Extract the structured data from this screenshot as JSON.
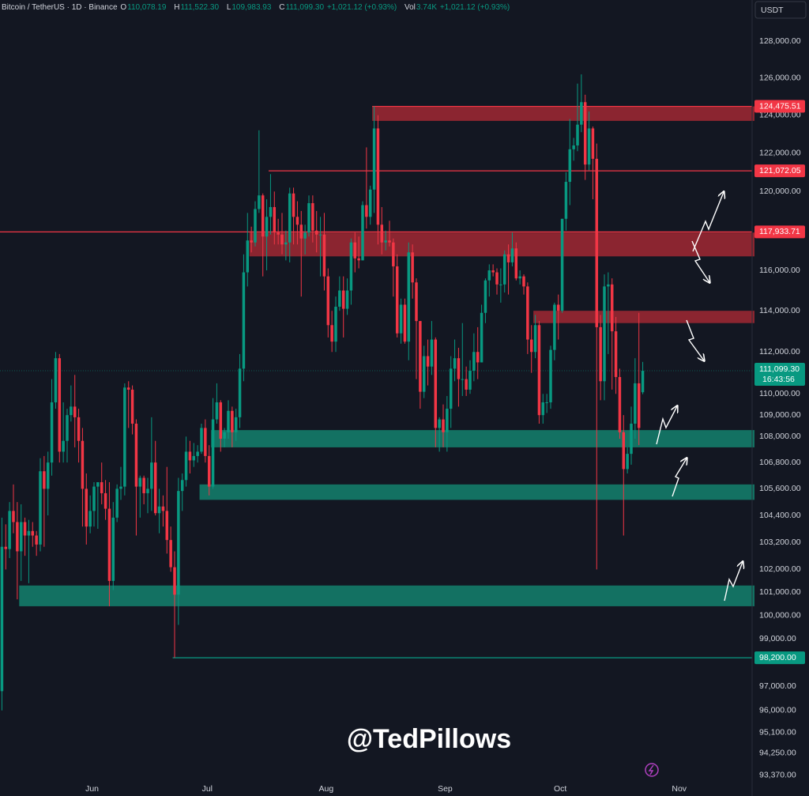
{
  "header": {
    "symbol": "Bitcoin / TetherUS · 1D · Binance",
    "o_label": "O",
    "o": "110,078.19",
    "h_label": "H",
    "h": "111,522.30",
    "l_label": "L",
    "l": "109,983.93",
    "c_label": "C",
    "c": "111,099.30",
    "change": "+1,021.12 (+0.93%)",
    "vol_label": "Vol",
    "vol": "3.74K",
    "vol_change": "+1,021.12 (+0.93%)"
  },
  "currency_button": "USDT",
  "watermark": "@TedPillows",
  "chart_data": {
    "type": "candlestick",
    "log_scale": true,
    "grid": false,
    "up_color": "#089981",
    "down_color": "#f23645",
    "ylim": [
      93070,
      130300
    ],
    "yticks": [
      {
        "value": 128000,
        "label": "128,000.00"
      },
      {
        "value": 126000,
        "label": "126,000.00"
      },
      {
        "value": 124000,
        "label": "124,000.00"
      },
      {
        "value": 122000,
        "label": "122,000.00"
      },
      {
        "value": 120000,
        "label": "120,000.00"
      },
      {
        "value": 116000,
        "label": "116,000.00"
      },
      {
        "value": 114000,
        "label": "114,000.00"
      },
      {
        "value": 112000,
        "label": "112,000.00"
      },
      {
        "value": 110000,
        "label": "110,000.00"
      },
      {
        "value": 109000,
        "label": "109,000.00"
      },
      {
        "value": 108000,
        "label": "108,000.00"
      },
      {
        "value": 106800,
        "label": "106,800.00"
      },
      {
        "value": 105600,
        "label": "105,600.00"
      },
      {
        "value": 104400,
        "label": "104,400.00"
      },
      {
        "value": 103200,
        "label": "103,200.00"
      },
      {
        "value": 102000,
        "label": "102,000.00"
      },
      {
        "value": 101000,
        "label": "101,000.00"
      },
      {
        "value": 100000,
        "label": "100,000.00"
      },
      {
        "value": 99000,
        "label": "99,000.00"
      },
      {
        "value": 97000,
        "label": "97,000.00"
      },
      {
        "value": 96000,
        "label": "96,000.00"
      },
      {
        "value": 95100,
        "label": "95,100.00"
      },
      {
        "value": 94250,
        "label": "94,250.00"
      },
      {
        "value": 93370,
        "label": "93,370.00"
      }
    ],
    "xlim": [
      0,
      196
    ],
    "xticks": [
      {
        "value": 24,
        "label": "Jun"
      },
      {
        "value": 54,
        "label": "Jul"
      },
      {
        "value": 85,
        "label": "Aug"
      },
      {
        "value": 116,
        "label": "Sep"
      },
      {
        "value": 146,
        "label": "Oct"
      },
      {
        "value": 177,
        "label": "Nov"
      }
    ],
    "open": [
      96800,
      103000,
      102900,
      104600,
      104100,
      102800,
      104100,
      103500,
      103700,
      103500,
      103100,
      106400,
      105600,
      106800,
      109600,
      111700,
      107300,
      107800,
      109000,
      109400,
      108900,
      107800,
      105600,
      103900,
      104600,
      105700,
      105900,
      105400,
      104700,
      101500,
      104300,
      105600,
      105700,
      110300,
      110200,
      108600,
      105700,
      106100,
      105400,
      105600,
      106800,
      104500,
      104800,
      104600,
      103300,
      102100,
      100900,
      105500,
      106000,
      107300,
      106900,
      107100,
      107300,
      108400,
      107100,
      105700,
      108800,
      109600,
      107900,
      108200,
      109200,
      108200,
      108900,
      111200,
      115900,
      117500,
      117400,
      119100,
      119800,
      117700,
      118700,
      119200,
      117900,
      117800,
      117300,
      117400,
      119900,
      118700,
      118300,
      117600,
      117900,
      119400,
      118000,
      117800,
      117800,
      115700,
      113300,
      112500,
      114200,
      115000,
      114100,
      115000,
      117400,
      116600,
      116500,
      119300,
      118700,
      120100,
      123300,
      118300,
      117400,
      117500,
      117400,
      116200,
      112900,
      114300,
      112500,
      116900,
      115400,
      113500,
      110100,
      111800,
      111300,
      112600,
      108400,
      108800,
      108200,
      109300,
      111200,
      111700,
      110700,
      110700,
      110200,
      111100,
      112000,
      111500,
      113900,
      115500,
      116000,
      115900,
      115300,
      115300,
      116800,
      116400,
      117100,
      115600,
      115700,
      115200,
      112600,
      112000,
      113300,
      109000,
      109600,
      109600,
      112100,
      114300,
      114000,
      118600,
      120500,
      122200,
      122400,
      123500,
      124700,
      121400,
      123300,
      121700,
      113200,
      110600,
      115200,
      115300,
      113000,
      110800,
      108200,
      106500,
      107200,
      108600,
      110500,
      110078.19
    ],
    "high": [
      104300,
      104000,
      105000,
      105800,
      105000,
      104900,
      104300,
      104200,
      104100,
      103700,
      107000,
      107100,
      107300,
      110700,
      112000,
      111900,
      109600,
      109300,
      110400,
      110900,
      109300,
      108400,
      106300,
      105300,
      105900,
      105900,
      106800,
      106000,
      105900,
      105000,
      105800,
      106600,
      110500,
      110600,
      110400,
      108800,
      106200,
      106200,
      106100,
      108900,
      107800,
      105600,
      105300,
      106600,
      103900,
      102800,
      106100,
      106300,
      108000,
      107800,
      107700,
      107600,
      108600,
      108800,
      107600,
      109800,
      110500,
      109700,
      108400,
      109700,
      109400,
      109300,
      111900,
      116800,
      118900,
      118200,
      119500,
      123200,
      119900,
      119600,
      120900,
      120000,
      118600,
      118900,
      118000,
      120200,
      120200,
      119500,
      119000,
      118300,
      119800,
      119800,
      119000,
      118700,
      118900,
      116100,
      114000,
      114700,
      115700,
      115700,
      115600,
      117600,
      117900,
      117700,
      119500,
      122300,
      120300,
      124475.51,
      124000,
      119200,
      118000,
      118500,
      117600,
      116800,
      114600,
      114600,
      117400,
      117300,
      115600,
      113500,
      112300,
      112600,
      113500,
      112700,
      108900,
      109500,
      109900,
      111800,
      112600,
      112200,
      113400,
      111300,
      111600,
      112900,
      113200,
      114300,
      115600,
      116300,
      116300,
      116100,
      116100,
      117000,
      117300,
      117900,
      117400,
      116000,
      115800,
      115400,
      113300,
      113800,
      113500,
      110000,
      110000,
      112300,
      114400,
      114800,
      118600,
      121000,
      123800,
      122800,
      125700,
      126200,
      125100,
      124200,
      123400,
      122500,
      113800,
      115800,
      115900,
      115600,
      113700,
      111200,
      109000,
      107500,
      109400,
      111700,
      113900,
      111522.3
    ],
    "low": [
      96000,
      102000,
      102500,
      103600,
      100700,
      101500,
      102600,
      101400,
      103000,
      102600,
      102800,
      103000,
      104400,
      106200,
      109300,
      106800,
      106800,
      106800,
      108700,
      107500,
      106800,
      103900,
      103100,
      103600,
      103900,
      103800,
      104900,
      104200,
      100400,
      101100,
      104100,
      105100,
      105300,
      108400,
      108100,
      103500,
      104300,
      104900,
      104500,
      104600,
      104400,
      103600,
      103900,
      102700,
      101900,
      98200,
      99600,
      104600,
      105700,
      106300,
      106600,
      106800,
      107200,
      106800,
      105300,
      105600,
      108600,
      107300,
      107500,
      107900,
      107500,
      107800,
      108400,
      110600,
      115200,
      116900,
      117200,
      118900,
      115700,
      116000,
      117800,
      117300,
      117300,
      116800,
      116500,
      116400,
      117300,
      117300,
      114700,
      116800,
      117700,
      117400,
      116900,
      115700,
      115000,
      112700,
      112000,
      112000,
      114000,
      112700,
      113800,
      114300,
      115900,
      116100,
      116500,
      118100,
      118300,
      118900,
      117300,
      116800,
      117000,
      117200,
      114700,
      112700,
      112400,
      112400,
      111600,
      114600,
      110700,
      109300,
      109800,
      110400,
      110900,
      107500,
      107300,
      107500,
      107300,
      108400,
      110600,
      109400,
      109900,
      109900,
      110000,
      110600,
      110700,
      111500,
      113400,
      114700,
      115700,
      114800,
      114400,
      114900,
      114800,
      116200,
      115500,
      115300,
      114800,
      111900,
      111000,
      111700,
      108600,
      108600,
      109100,
      109300,
      111600,
      112600,
      113900,
      118000,
      119300,
      121600,
      122100,
      123100,
      120600,
      121100,
      119600,
      102000,
      109700,
      109700,
      111900,
      110200,
      110000,
      107900,
      103500,
      106300,
      106700,
      107900,
      107600,
      109983.93
    ],
    "close": [
      103000,
      102900,
      104600,
      104100,
      102800,
      104100,
      103500,
      103700,
      103500,
      103100,
      106400,
      105600,
      106800,
      109600,
      111700,
      107300,
      107800,
      109000,
      109400,
      108900,
      107800,
      105600,
      103900,
      104600,
      105700,
      105900,
      105400,
      104700,
      101500,
      104300,
      105600,
      105700,
      110300,
      110200,
      108600,
      105700,
      106100,
      105400,
      105600,
      106800,
      104500,
      104800,
      104600,
      103300,
      102100,
      100900,
      105500,
      106000,
      107300,
      106900,
      107100,
      107300,
      108400,
      107100,
      105700,
      108800,
      109600,
      107900,
      108200,
      109200,
      108200,
      108900,
      111200,
      115900,
      117500,
      117400,
      119100,
      119800,
      117700,
      118700,
      119200,
      117900,
      117800,
      117300,
      117400,
      119900,
      118700,
      118300,
      117600,
      117900,
      119400,
      118000,
      117800,
      117800,
      115700,
      113300,
      112500,
      114200,
      115000,
      114100,
      115000,
      117400,
      116600,
      116500,
      119300,
      118700,
      120100,
      123300,
      118300,
      117400,
      117500,
      117400,
      116200,
      112900,
      114300,
      112500,
      116900,
      115400,
      113500,
      110100,
      111800,
      111300,
      112600,
      108400,
      108800,
      108200,
      109300,
      111200,
      111700,
      110700,
      110700,
      110200,
      111100,
      112000,
      111500,
      113900,
      115500,
      116000,
      115900,
      115300,
      115300,
      116800,
      116400,
      117100,
      115600,
      115700,
      115200,
      112600,
      112000,
      113300,
      109000,
      109600,
      109600,
      112100,
      114300,
      114000,
      118600,
      120500,
      122200,
      122400,
      123500,
      124700,
      121400,
      123300,
      121700,
      113200,
      110600,
      115200,
      115300,
      113000,
      110800,
      108200,
      106500,
      107200,
      108600,
      110500,
      108400,
      111099.3
    ],
    "zones": [
      {
        "from": 97,
        "low": 123700,
        "high": 124475.51,
        "color": "#8b2530"
      },
      {
        "from": 65,
        "low": 116700,
        "high": 117900,
        "color": "#8b2530"
      },
      {
        "from": 139,
        "low": 113400,
        "high": 114000,
        "color": "#8b2530"
      },
      {
        "from": 55,
        "low": 107500,
        "high": 108300,
        "color": "#137162"
      },
      {
        "from": 52,
        "low": 105100,
        "high": 105800,
        "color": "#137162"
      },
      {
        "from": 5,
        "low": 100400,
        "high": 101300,
        "color": "#137162"
      }
    ],
    "levels": [
      {
        "from": 97,
        "value": 124475.51,
        "label": "124,475.51",
        "color": "#f23645"
      },
      {
        "from": 70,
        "value": 121072.05,
        "label": "121,072.05",
        "color": "#f23645"
      },
      {
        "from": 0,
        "value": 117933.71,
        "label": "117,933.71",
        "color": "#f23645"
      },
      {
        "from": 45,
        "value": 98200,
        "label": "98,200.00",
        "color": "#089981"
      }
    ],
    "last_price": {
      "value": 111099.3,
      "label": "111,099.30",
      "countdown": "16:43:56",
      "color": "#089981"
    }
  }
}
